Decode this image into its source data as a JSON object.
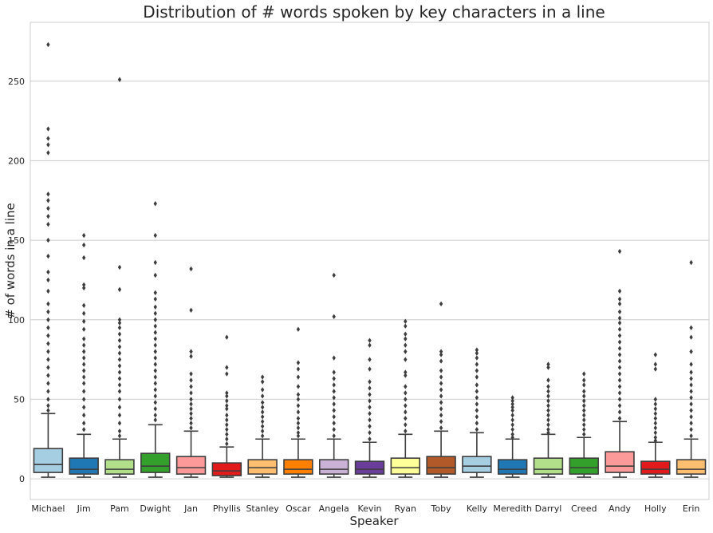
{
  "chart_data": {
    "type": "box",
    "title": "Distribution of # words spoken by key characters in a line",
    "xlabel": "Speaker",
    "ylabel": "# of words in a line",
    "ylim": [
      -13,
      287
    ],
    "yticks": [
      0,
      50,
      100,
      150,
      200,
      250
    ],
    "grid": "y",
    "categories": [
      "Michael",
      "Jim",
      "Pam",
      "Dwight",
      "Jan",
      "Phyllis",
      "Stanley",
      "Oscar",
      "Angela",
      "Kevin",
      "Ryan",
      "Toby",
      "Kelly",
      "Meredith",
      "Darryl",
      "Creed",
      "Andy",
      "Holly",
      "Erin"
    ],
    "colors": [
      "#a6cee3",
      "#1f78b4",
      "#b2df8a",
      "#33a02c",
      "#fb9a99",
      "#e31a1c",
      "#fdbf6f",
      "#ff7f00",
      "#cab2d6",
      "#6a3d9a",
      "#ffff99",
      "#b15928",
      "#a6cee3",
      "#1f78b4",
      "#b2df8a",
      "#33a02c",
      "#fb9a99",
      "#e31a1c",
      "#fdbf6f"
    ],
    "boxes": [
      {
        "whislo": 1,
        "q1": 4,
        "med": 9,
        "q3": 19,
        "whishi": 41,
        "outliers": [
          273,
          220,
          214,
          210,
          205,
          179,
          175,
          170,
          165,
          160,
          150,
          140,
          130,
          125,
          118,
          110,
          105,
          100,
          95,
          90,
          85,
          80,
          75,
          70,
          65,
          60,
          55,
          50,
          46,
          43
        ]
      },
      {
        "whislo": 1,
        "q1": 3,
        "med": 6,
        "q3": 13,
        "whishi": 28,
        "outliers": [
          153,
          147,
          139,
          122,
          120,
          109,
          104,
          99,
          94,
          88,
          84,
          80,
          76,
          72,
          68,
          64,
          60,
          55,
          50,
          45,
          40,
          35,
          31
        ]
      },
      {
        "whislo": 1,
        "q1": 3,
        "med": 6,
        "q3": 12,
        "whishi": 25,
        "outliers": [
          251,
          133,
          119,
          100,
          98,
          95,
          91,
          87,
          83,
          79,
          75,
          71,
          67,
          63,
          59,
          55,
          50,
          45,
          40,
          35,
          30,
          27
        ]
      },
      {
        "whislo": 1,
        "q1": 4,
        "med": 8,
        "q3": 16,
        "whishi": 34,
        "outliers": [
          173,
          153,
          136,
          128,
          117,
          113,
          108,
          104,
          100,
          96,
          92,
          88,
          84,
          80,
          76,
          72,
          68,
          64,
          60,
          56,
          52,
          48,
          44,
          40,
          37
        ]
      },
      {
        "whislo": 1,
        "q1": 3,
        "med": 7,
        "q3": 14,
        "whishi": 30,
        "outliers": [
          132,
          106,
          80,
          77,
          66,
          62,
          58,
          54,
          50,
          47,
          44,
          41,
          38,
          35,
          32
        ]
      },
      {
        "whislo": 1,
        "q1": 2,
        "med": 5,
        "q3": 10,
        "whishi": 20,
        "outliers": [
          89,
          70,
          66,
          54,
          52,
          49,
          46,
          44,
          40,
          37,
          34,
          31,
          28,
          25,
          22
        ]
      },
      {
        "whislo": 1,
        "q1": 3,
        "med": 7,
        "q3": 12,
        "whishi": 25,
        "outliers": [
          64,
          61,
          56,
          52,
          48,
          45,
          42,
          39,
          36,
          33,
          30,
          27
        ]
      },
      {
        "whislo": 1,
        "q1": 3,
        "med": 6,
        "q3": 12,
        "whishi": 25,
        "outliers": [
          94,
          73,
          69,
          64,
          58,
          53,
          50,
          46,
          42,
          38,
          35,
          32,
          29,
          27
        ]
      },
      {
        "whislo": 1,
        "q1": 3,
        "med": 6,
        "q3": 12,
        "whishi": 25,
        "outliers": [
          128,
          102,
          76,
          67,
          63,
          59,
          55,
          51,
          47,
          43,
          39,
          35,
          31,
          27
        ]
      },
      {
        "whislo": 1,
        "q1": 3,
        "med": 6,
        "q3": 11,
        "whishi": 23,
        "outliers": [
          87,
          84,
          75,
          69,
          61,
          57,
          53,
          49,
          45,
          41,
          37,
          33,
          29,
          25
        ]
      },
      {
        "whislo": 1,
        "q1": 3,
        "med": 7,
        "q3": 13,
        "whishi": 28,
        "outliers": [
          99,
          96,
          91,
          88,
          84,
          80,
          75,
          67,
          65,
          58,
          54,
          50,
          46,
          42,
          38,
          34,
          30
        ]
      },
      {
        "whislo": 1,
        "q1": 3,
        "med": 7,
        "q3": 14,
        "whishi": 30,
        "outliers": [
          110,
          80,
          78,
          74,
          68,
          64,
          60,
          56,
          52,
          48,
          44,
          40,
          36,
          32
        ]
      },
      {
        "whislo": 1,
        "q1": 4,
        "med": 8,
        "q3": 14,
        "whishi": 29,
        "outliers": [
          81,
          79,
          76,
          72,
          68,
          64,
          59,
          55,
          51,
          47,
          43,
          39,
          35,
          31
        ]
      },
      {
        "whislo": 1,
        "q1": 3,
        "med": 6,
        "q3": 12,
        "whishi": 25,
        "outliers": [
          51,
          49,
          47,
          45,
          43,
          40,
          37,
          34,
          31,
          28,
          26
        ]
      },
      {
        "whislo": 1,
        "q1": 3,
        "med": 6,
        "q3": 13,
        "whishi": 28,
        "outliers": [
          72,
          70,
          62,
          58,
          55,
          52,
          49,
          46,
          43,
          40,
          37,
          34,
          31,
          29
        ]
      },
      {
        "whislo": 1,
        "q1": 3,
        "med": 7,
        "q3": 13,
        "whishi": 26,
        "outliers": [
          66,
          62,
          59,
          55,
          52,
          49,
          46,
          43,
          40,
          37,
          34,
          31,
          28
        ]
      },
      {
        "whislo": 1,
        "q1": 4,
        "med": 8,
        "q3": 17,
        "whishi": 36,
        "outliers": [
          143,
          118,
          113,
          110,
          105,
          101,
          98,
          94,
          90,
          86,
          82,
          78,
          74,
          70,
          66,
          62,
          58,
          54,
          50,
          46,
          42,
          38
        ]
      },
      {
        "whislo": 1,
        "q1": 3,
        "med": 6,
        "q3": 11,
        "whishi": 23,
        "outliers": [
          78,
          72,
          69,
          50,
          47,
          44,
          41,
          38,
          35,
          32,
          29,
          26,
          24
        ]
      },
      {
        "whislo": 1,
        "q1": 3,
        "med": 6,
        "q3": 12,
        "whishi": 25,
        "outliers": [
          136,
          95,
          89,
          80,
          72,
          67,
          63,
          59,
          55,
          51,
          47,
          43,
          39,
          35,
          31,
          27
        ]
      }
    ]
  }
}
